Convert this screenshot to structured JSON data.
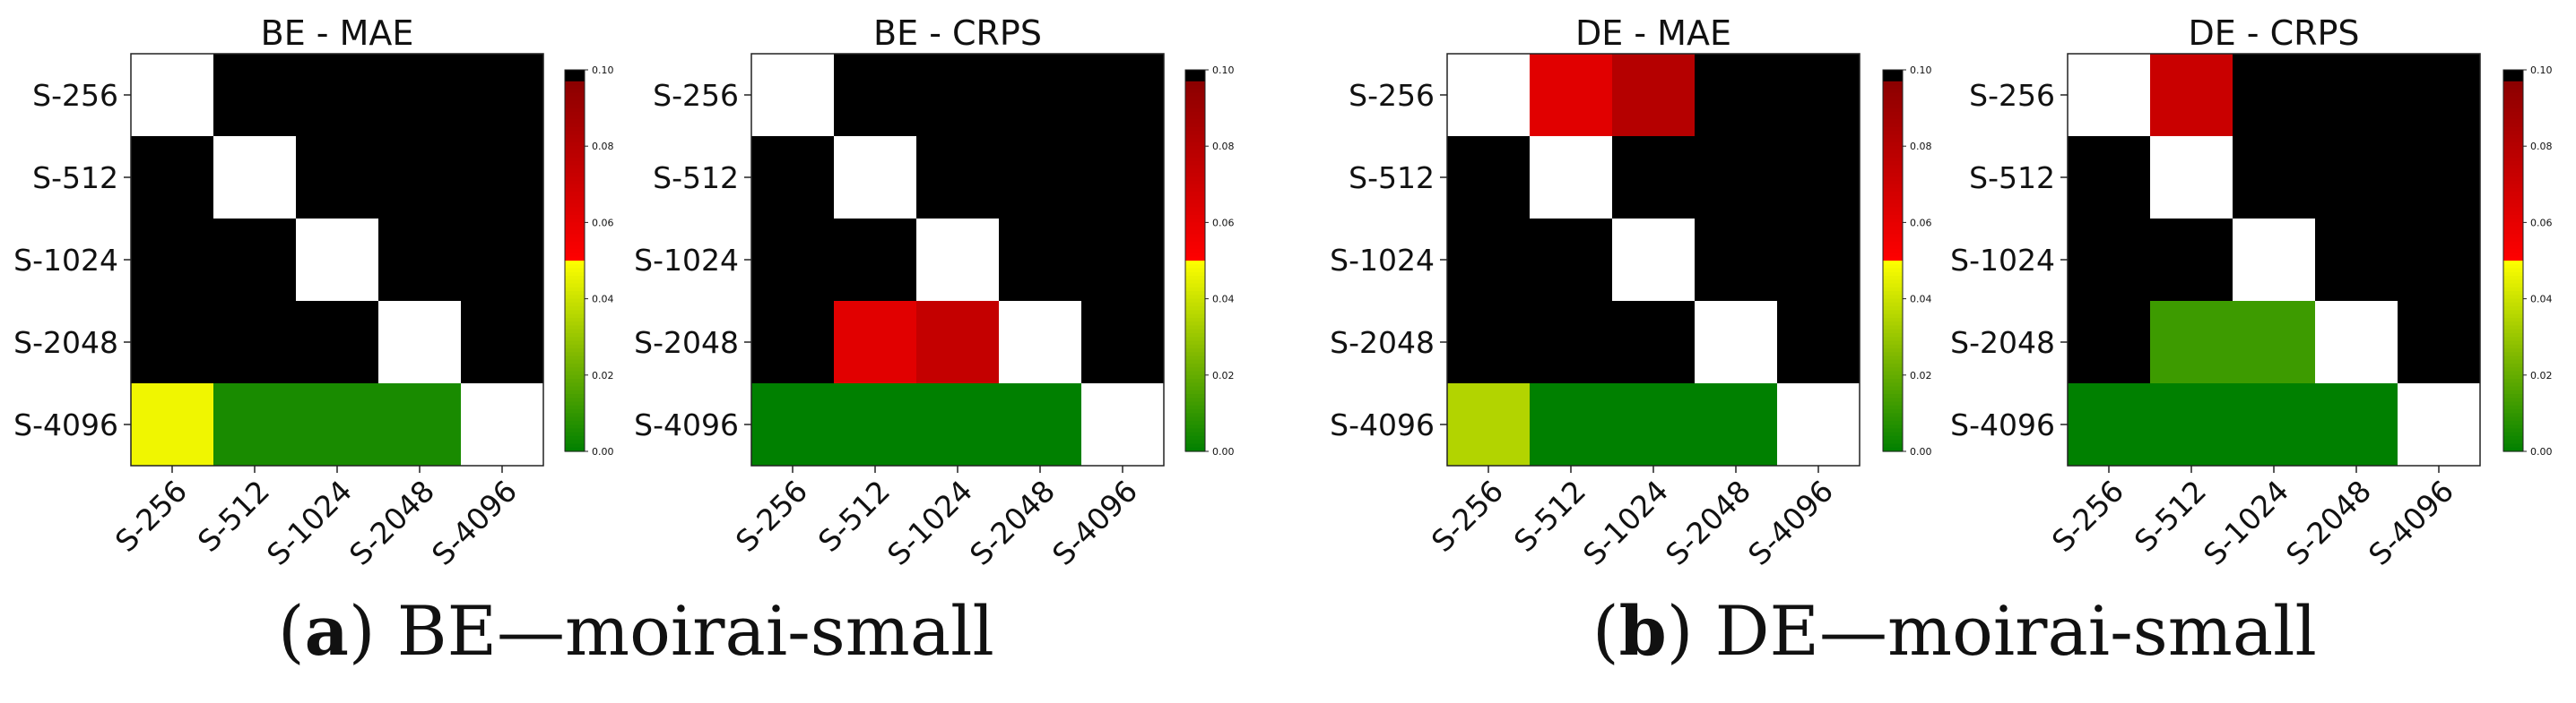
{
  "colorbar": {
    "ticks": [
      "0.00",
      "0.02",
      "0.04",
      "0.06",
      "0.08",
      "0.10"
    ],
    "tick_values": [
      0,
      0.02,
      0.04,
      0.06,
      0.08,
      0.1
    ],
    "range": [
      0,
      0.1
    ],
    "colors": {
      "green_low": "#008000",
      "green_mid": "#7fb800",
      "yellow": "#ffff00",
      "red": "#ff0000",
      "dark_red": "#8b0000",
      "black": "#000000",
      "diagonal": "#ffffff"
    }
  },
  "chart_data": [
    {
      "type": "heatmap",
      "title": "BE - MAE",
      "x_labels": [
        "S-256",
        "S-512",
        "S-1024",
        "S-2048",
        "S-4096"
      ],
      "y_labels": [
        "S-256",
        "S-512",
        "S-1024",
        "S-2048",
        "S-4096"
      ],
      "values": [
        [
          null,
          0.1,
          0.1,
          0.1,
          0.1
        ],
        [
          0.1,
          null,
          0.1,
          0.1,
          0.1
        ],
        [
          0.1,
          0.1,
          null,
          0.1,
          0.1
        ],
        [
          0.1,
          0.1,
          0.1,
          null,
          0.1
        ],
        [
          0.047,
          0.005,
          0.005,
          0.005,
          null
        ]
      ],
      "colorbar_range": [
        0,
        0.1
      ]
    },
    {
      "type": "heatmap",
      "title": "BE - CRPS",
      "x_labels": [
        "S-256",
        "S-512",
        "S-1024",
        "S-2048",
        "S-4096"
      ],
      "y_labels": [
        "S-256",
        "S-512",
        "S-1024",
        "S-2048",
        "S-4096"
      ],
      "values": [
        [
          null,
          0.1,
          0.1,
          0.1,
          0.1
        ],
        [
          0.1,
          null,
          0.1,
          0.1,
          0.1
        ],
        [
          0.1,
          0.1,
          null,
          0.1,
          0.1
        ],
        [
          0.1,
          0.062,
          0.074,
          null,
          0.1
        ],
        [
          0.0,
          0.0,
          0.0,
          0.0,
          null
        ]
      ],
      "colorbar_range": [
        0,
        0.1
      ]
    },
    {
      "type": "heatmap",
      "title": "DE - MAE",
      "x_labels": [
        "S-256",
        "S-512",
        "S-1024",
        "S-2048",
        "S-4096"
      ],
      "y_labels": [
        "S-256",
        "S-512",
        "S-1024",
        "S-2048",
        "S-4096"
      ],
      "values": [
        [
          null,
          0.062,
          0.08,
          0.1,
          0.1
        ],
        [
          0.1,
          null,
          0.1,
          0.1,
          0.1
        ],
        [
          0.1,
          0.1,
          null,
          0.1,
          0.1
        ],
        [
          0.1,
          0.1,
          0.1,
          null,
          0.1
        ],
        [
          0.035,
          0.0,
          0.0,
          0.0,
          null
        ]
      ],
      "colorbar_range": [
        0,
        0.1
      ]
    },
    {
      "type": "heatmap",
      "title": "DE - CRPS",
      "x_labels": [
        "S-256",
        "S-512",
        "S-1024",
        "S-2048",
        "S-4096"
      ],
      "y_labels": [
        "S-256",
        "S-512",
        "S-1024",
        "S-2048",
        "S-4096"
      ],
      "values": [
        [
          null,
          0.072,
          0.1,
          0.1,
          0.1
        ],
        [
          0.1,
          null,
          0.1,
          0.1,
          0.1
        ],
        [
          0.1,
          0.1,
          null,
          0.1,
          0.1
        ],
        [
          0.1,
          0.012,
          0.012,
          null,
          0.1
        ],
        [
          0.0,
          0.0,
          0.0,
          0.0,
          null
        ]
      ],
      "colorbar_range": [
        0,
        0.1
      ]
    }
  ],
  "captions": [
    {
      "letter": "a",
      "text": "BE—moirai-small"
    },
    {
      "letter": "b",
      "text": "DE—moirai-small"
    }
  ]
}
